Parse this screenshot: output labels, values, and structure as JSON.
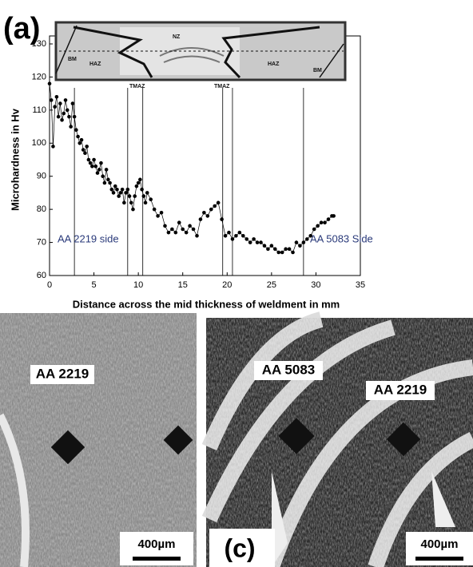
{
  "chart_data": {
    "type": "scatter",
    "panel_label": "(a)",
    "x_label": "Distance across the mid thickness of weldment in mm",
    "y_label": "Microhardness in Hv",
    "annotations": [
      "AA 2219 side",
      "AA 5083 Side"
    ],
    "xlim": [
      0,
      35
    ],
    "xticks": [
      0,
      5,
      10,
      15,
      20,
      25,
      30,
      35
    ],
    "ylim": [
      60,
      130
    ],
    "yticks": [
      60,
      70,
      80,
      90,
      100,
      110,
      120,
      130
    ],
    "boundaries": [
      2.8,
      8.8,
      10.5,
      19.5,
      20.6,
      28.6
    ],
    "color": "#000000",
    "x": [
      0,
      0.2,
      0.4,
      0.6,
      0.8,
      1.0,
      1.2,
      1.4,
      1.6,
      1.8,
      2.0,
      2.2,
      2.4,
      2.6,
      2.8,
      3.0,
      3.2,
      3.4,
      3.6,
      3.8,
      4.0,
      4.2,
      4.4,
      4.6,
      4.8,
      5.0,
      5.2,
      5.4,
      5.6,
      5.8,
      6.0,
      6.2,
      6.4,
      6.6,
      6.8,
      7.0,
      7.2,
      7.4,
      7.6,
      7.8,
      8.0,
      8.2,
      8.4,
      8.6,
      8.8,
      9.0,
      9.2,
      9.4,
      9.6,
      9.8,
      10.0,
      10.2,
      10.4,
      10.6,
      10.8,
      11.0,
      11.4,
      11.8,
      12.2,
      12.6,
      13.0,
      13.4,
      13.8,
      14.2,
      14.6,
      15.0,
      15.4,
      15.8,
      16.2,
      16.6,
      17.0,
      17.4,
      17.8,
      18.2,
      18.6,
      19.0,
      19.4,
      19.8,
      20.2,
      20.6,
      21.0,
      21.4,
      21.8,
      22.2,
      22.6,
      23.0,
      23.4,
      23.8,
      24.2,
      24.6,
      25.0,
      25.4,
      25.8,
      26.2,
      26.6,
      27.0,
      27.4,
      27.8,
      28.2,
      28.6,
      29.0,
      29.4,
      29.8,
      30.2,
      30.6,
      31.0,
      31.4,
      31.8,
      32.0
    ],
    "values": [
      118,
      113,
      99,
      111,
      114,
      108,
      112,
      107,
      109,
      113,
      110,
      108,
      105,
      112,
      108,
      104,
      102,
      100,
      101,
      98,
      97,
      99,
      95,
      94,
      93,
      95,
      93,
      91,
      92,
      94,
      90,
      88,
      92,
      89,
      88,
      86,
      85,
      87,
      86,
      84,
      85,
      86,
      82,
      85,
      86,
      84,
      82,
      80,
      84,
      87,
      88,
      89,
      86,
      84,
      82,
      85,
      83,
      80,
      78,
      79,
      75,
      73,
      74,
      73,
      76,
      74,
      73,
      75,
      74,
      72,
      77,
      79,
      78,
      80,
      81,
      82,
      77,
      72,
      73,
      71,
      72,
      73,
      72,
      71,
      70,
      71,
      70,
      70,
      69,
      68,
      69,
      68,
      67,
      67,
      68,
      68,
      67,
      70,
      69,
      70,
      71,
      72,
      74,
      75,
      76,
      76,
      77,
      78,
      78
    ]
  },
  "inset": {
    "labels": [
      "NZ",
      "BM",
      "HAZ",
      "HAZ",
      "BM",
      "TMAZ",
      "TMAZ"
    ]
  },
  "panel_b": {
    "label": "AA 2219",
    "scale": "400µm"
  },
  "panel_c": {
    "panel_label": "(c)",
    "labels": [
      "AA 5083",
      "AA 2219"
    ],
    "scale": "400µm"
  }
}
